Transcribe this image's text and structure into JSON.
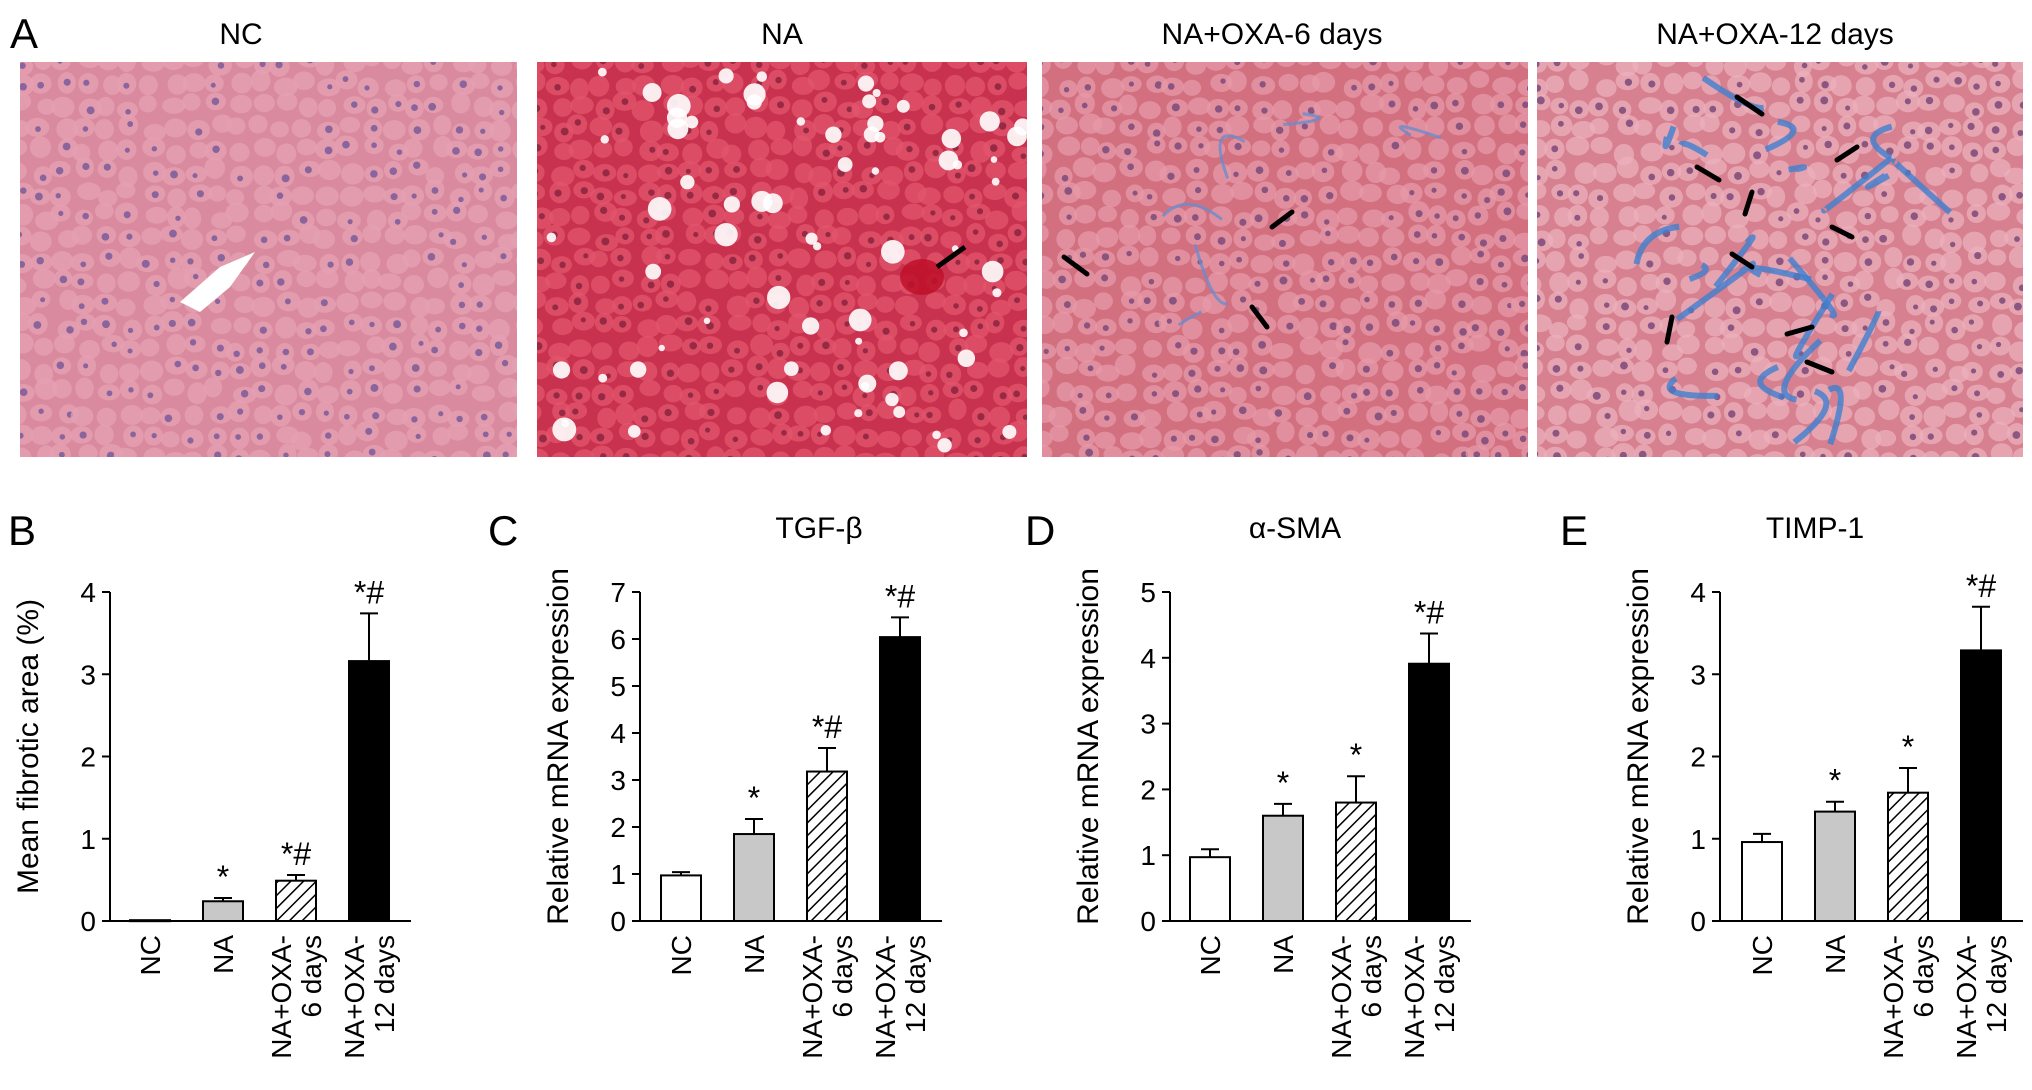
{
  "panel_a": {
    "letter": "A",
    "images": [
      {
        "title": "NC",
        "style": "normal-tissue",
        "colors": {
          "base": "#d98a9e",
          "cell": "#e6a0b3",
          "nucleus": "#7a5a9a",
          "accent": "#ffffff"
        }
      },
      {
        "title": "NA",
        "style": "steatosis",
        "colors": {
          "base": "#c9324e",
          "cell": "#e1566c",
          "nucleus": "#8a2440",
          "accent": "#ffffff"
        }
      },
      {
        "title": "NA+OXA-6 days",
        "style": "mild-fibrosis",
        "colors": {
          "base": "#d27080",
          "cell": "#e59aa8",
          "nucleus": "#7a4a7a",
          "accent": "#6a8ccc"
        }
      },
      {
        "title": "NA+OXA-12 days",
        "style": "severe-fibrosis",
        "colors": {
          "base": "#d68090",
          "cell": "#ebb0bc",
          "nucleus": "#7a4a7a",
          "accent": "#3f7fd0"
        }
      }
    ]
  },
  "chart_data": [
    {
      "letter": "B",
      "type": "bar",
      "title": "",
      "ylabel": "Mean fibrotic area (%)",
      "xlabel": "",
      "ylim": [
        0,
        4
      ],
      "yticks": [
        0,
        1,
        2,
        3,
        4
      ],
      "categories": [
        [
          "NC"
        ],
        [
          "NA"
        ],
        [
          "NA+OXA-",
          "6 days"
        ],
        [
          "NA+OXA-",
          "12 days"
        ]
      ],
      "values": [
        0.01,
        0.24,
        0.49,
        3.16
      ],
      "errors": [
        0.0,
        0.04,
        0.07,
        0.58
      ],
      "annotations": [
        "",
        "*",
        "*#",
        "*#"
      ],
      "fills": [
        "white",
        "gray",
        "hatch",
        "black"
      ]
    },
    {
      "letter": "C",
      "type": "bar",
      "title": "TGF-β",
      "ylabel": "Relative mRNA expression",
      "xlabel": "",
      "ylim": [
        0,
        7
      ],
      "yticks": [
        0,
        1,
        2,
        3,
        4,
        5,
        6,
        7
      ],
      "categories": [
        [
          "NC"
        ],
        [
          "NA"
        ],
        [
          "NA+OXA-",
          "6 days"
        ],
        [
          "NA+OXA-",
          "12 days"
        ]
      ],
      "values": [
        0.97,
        1.85,
        3.18,
        6.04
      ],
      "errors": [
        0.07,
        0.32,
        0.5,
        0.42
      ],
      "annotations": [
        "",
        "*",
        "*#",
        "*#"
      ],
      "fills": [
        "white",
        "gray",
        "hatch",
        "black"
      ]
    },
    {
      "letter": "D",
      "type": "bar",
      "title": "α-SMA",
      "ylabel": "Relative mRNA expression",
      "xlabel": "",
      "ylim": [
        0,
        5
      ],
      "yticks": [
        0,
        1,
        2,
        3,
        4,
        5
      ],
      "categories": [
        [
          "NC"
        ],
        [
          "NA"
        ],
        [
          "NA+OXA-",
          "6 days"
        ],
        [
          "NA+OXA-",
          "12 days"
        ]
      ],
      "values": [
        0.97,
        1.6,
        1.8,
        3.91
      ],
      "errors": [
        0.12,
        0.18,
        0.4,
        0.46
      ],
      "annotations": [
        "",
        "*",
        "*",
        "*#"
      ],
      "fills": [
        "white",
        "gray",
        "hatch",
        "black"
      ]
    },
    {
      "letter": "E",
      "type": "bar",
      "title": "TIMP-1",
      "ylabel": "Relative mRNA expression",
      "xlabel": "",
      "ylim": [
        0,
        4
      ],
      "yticks": [
        0,
        1,
        2,
        3,
        4
      ],
      "categories": [
        [
          "NC"
        ],
        [
          "NA"
        ],
        [
          "NA+OXA-",
          "6 days"
        ],
        [
          "NA+OXA-",
          "12 days"
        ]
      ],
      "values": [
        0.96,
        1.33,
        1.56,
        3.29
      ],
      "errors": [
        0.1,
        0.12,
        0.3,
        0.53
      ],
      "annotations": [
        "",
        "*",
        "*",
        "*#"
      ],
      "fills": [
        "white",
        "gray",
        "hatch",
        "black"
      ]
    }
  ],
  "colors": {
    "gray_bar": "#c8c8c8",
    "black_bar": "#000000",
    "axis": "#000000"
  }
}
